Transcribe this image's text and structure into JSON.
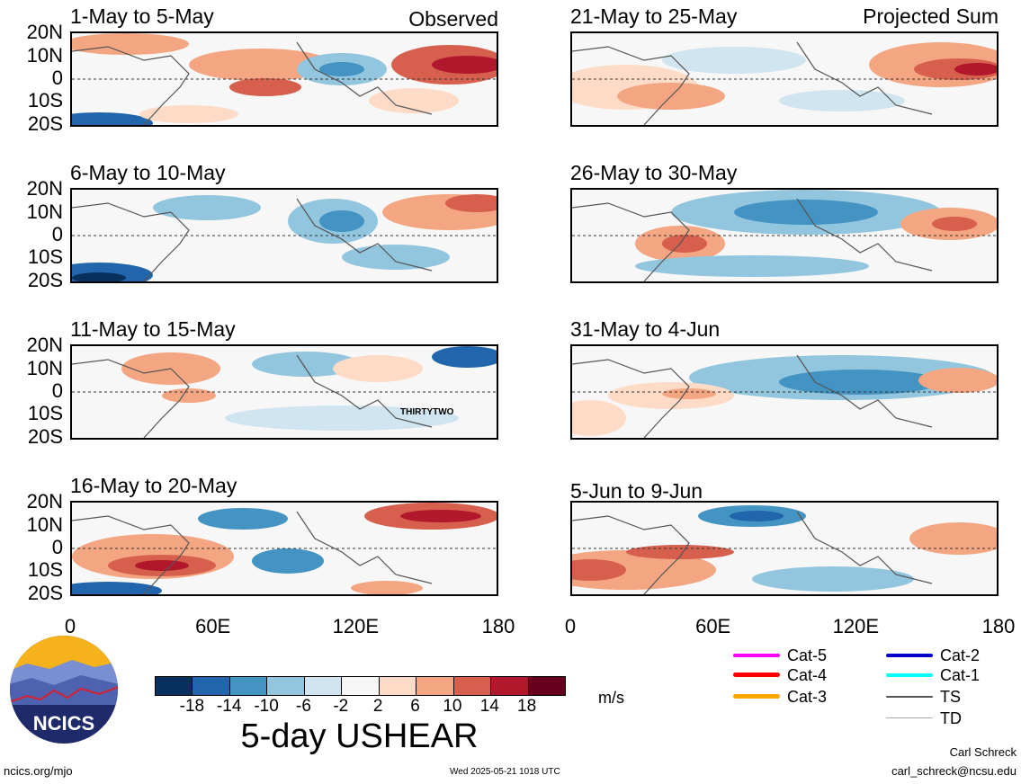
{
  "panels": [
    {
      "title": "1-May to 5-May",
      "tag": "Observed",
      "storm": ""
    },
    {
      "title": "21-May to 25-May",
      "tag": "Projected Sum",
      "storm": ""
    },
    {
      "title": "6-May to 10-May",
      "tag": "",
      "storm": ""
    },
    {
      "title": "26-May to 30-May",
      "tag": "",
      "storm": ""
    },
    {
      "title": "11-May to 15-May",
      "tag": "",
      "storm": "THIRTYTWO"
    },
    {
      "title": "31-May to 4-Jun",
      "tag": "",
      "storm": ""
    },
    {
      "title": "16-May to 20-May",
      "tag": "",
      "storm": ""
    },
    {
      "title": "5-Jun to 9-Jun",
      "tag": "",
      "storm": ""
    }
  ],
  "lat_labels": [
    "20N",
    "10N",
    "0",
    "10S",
    "20S"
  ],
  "lon_labels": [
    "0",
    "60E",
    "120E",
    "180"
  ],
  "colorbar": {
    "labels": [
      "-18",
      "-14",
      "-10",
      "-6",
      "-2",
      "2",
      "6",
      "10",
      "14",
      "18"
    ],
    "colors": [
      "#08305f",
      "#2166ac",
      "#4393c3",
      "#92c5de",
      "#d1e5f0",
      "#f7f7f7",
      "#fddbc7",
      "#f4a582",
      "#d6604d",
      "#b2182b",
      "#67001f"
    ],
    "units": "m/s",
    "title": "5-day USHEAR"
  },
  "legend": [
    {
      "label": "Cat-5",
      "color": "#ff00ff"
    },
    {
      "label": "Cat-4",
      "color": "#ff0000"
    },
    {
      "label": "Cat-3",
      "color": "#ffa500"
    },
    {
      "label": "Cat-2",
      "color": "#0000cc"
    },
    {
      "label": "Cat-1",
      "color": "#00ffff"
    },
    {
      "label": "TS",
      "color": "#555555"
    },
    {
      "label": "TD",
      "color": "#aaaaaa"
    }
  ],
  "logo": {
    "text": "NCICS"
  },
  "footer": {
    "url": "ncics.org/mjo",
    "timestamp": "Wed 2025-05-21 1018 UTC",
    "author": "Carl Schreck",
    "email": "carl_schreck@ncsu.edu"
  }
}
